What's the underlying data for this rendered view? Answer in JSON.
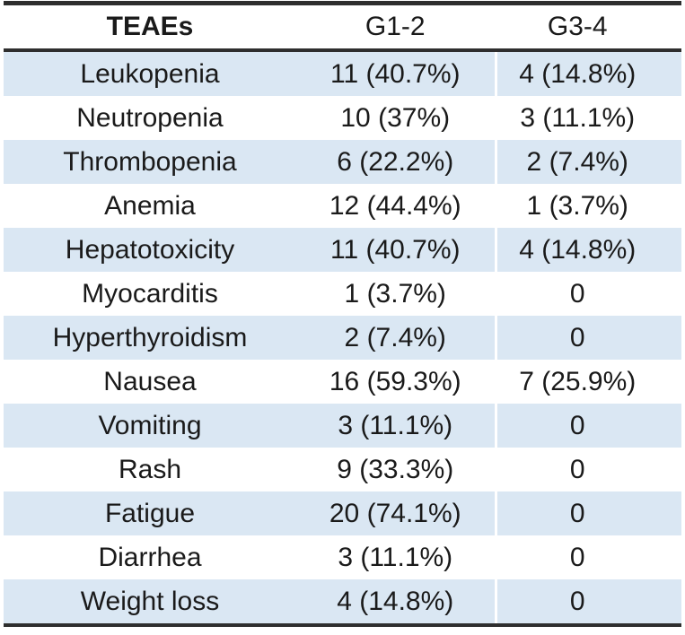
{
  "chart_data": {
    "type": "table",
    "columns": [
      "TEAEs",
      "G1-2",
      "G3-4"
    ],
    "rows": [
      [
        "Leukopenia",
        "11 (40.7%)",
        "4 (14.8%)"
      ],
      [
        "Neutropenia",
        "10 (37%)",
        "3 (11.1%)"
      ],
      [
        "Thrombopenia",
        "6 (22.2%)",
        "2 (7.4%)"
      ],
      [
        "Anemia",
        "12 (44.4%)",
        "1 (3.7%)"
      ],
      [
        "Hepatotoxicity",
        "11 (40.7%)",
        "4 (14.8%)"
      ],
      [
        "Myocarditis",
        "1 (3.7%)",
        "0"
      ],
      [
        "Hyperthyroidism",
        "2 (7.4%)",
        "0"
      ],
      [
        "Nausea",
        "16 (59.3%)",
        "7 (25.9%)"
      ],
      [
        "Vomiting",
        "3 (11.1%)",
        "0"
      ],
      [
        "Rash",
        "9 (33.3%)",
        "0"
      ],
      [
        "Fatigue",
        "20 (74.1%)",
        "0"
      ],
      [
        "Diarrhea",
        "3 (11.1%)",
        "0"
      ],
      [
        "Weight loss",
        "4 (14.8%)",
        "0"
      ]
    ],
    "layout": {
      "banding": "odd-rows-shaded",
      "grid": "horizontal-rules-only",
      "stripe_color": "#dae7f3",
      "rule_color": "#2e2e2e",
      "text_color": "#1a1a1a",
      "background_color": "#ffffff"
    }
  }
}
